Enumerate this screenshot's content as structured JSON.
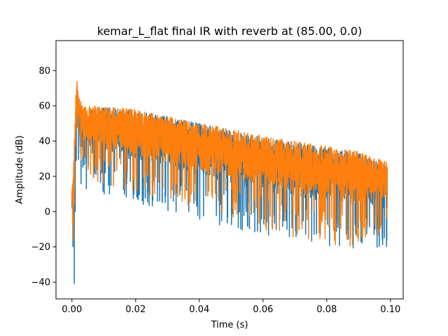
{
  "chart_data": {
    "type": "line",
    "title": "kemar_L_flat final IR with reverb at (85.00, 0.0)",
    "xlabel": "Time (s)",
    "ylabel": "Amplitude (dB)",
    "xlim": [
      -0.005,
      0.104
    ],
    "ylim": [
      -49.5,
      97
    ],
    "xticks": [
      0.0,
      0.02,
      0.04,
      0.06,
      0.08,
      0.1
    ],
    "xtick_labels": [
      "0.00",
      "0.02",
      "0.04",
      "0.06",
      "0.08",
      "0.10"
    ],
    "yticks": [
      -40,
      -20,
      0,
      20,
      40,
      60,
      80
    ],
    "ytick_labels": [
      "−40",
      "−20",
      "0",
      "20",
      "40",
      "60",
      "80"
    ],
    "grid": false,
    "legend": "none",
    "series": [
      {
        "color": "#1f77b4",
        "envelope": {
          "x": [
            0.0,
            0.0004,
            0.0008,
            0.0012,
            0.0016,
            0.002,
            0.003,
            0.005,
            0.01,
            0.02,
            0.03,
            0.04,
            0.05,
            0.06,
            0.07,
            0.08,
            0.09,
            0.099
          ],
          "upper": [
            12,
            18,
            40,
            62,
            70,
            60,
            57,
            58,
            59,
            57,
            54,
            50,
            46,
            42,
            39,
            36,
            33,
            26
          ],
          "lower": [
            -10,
            -40,
            -43,
            5,
            22,
            20,
            15,
            10,
            10,
            5,
            0,
            -5,
            -10,
            -15,
            -17,
            -20,
            -23,
            -20
          ]
        }
      },
      {
        "color": "#ff7f0e",
        "envelope": {
          "x": [
            0.0,
            0.0004,
            0.0008,
            0.0012,
            0.0016,
            0.002,
            0.003,
            0.005,
            0.01,
            0.02,
            0.03,
            0.04,
            0.05,
            0.06,
            0.07,
            0.08,
            0.09,
            0.099
          ],
          "upper": [
            13,
            20,
            45,
            70,
            75,
            68,
            62,
            60,
            60,
            58,
            54,
            50,
            47,
            43,
            40,
            37,
            34,
            28
          ],
          "lower": [
            -5,
            -30,
            -24,
            20,
            40,
            45,
            25,
            20,
            15,
            10,
            5,
            0,
            -5,
            -10,
            -15,
            -18,
            -22,
            -10
          ]
        }
      }
    ]
  }
}
